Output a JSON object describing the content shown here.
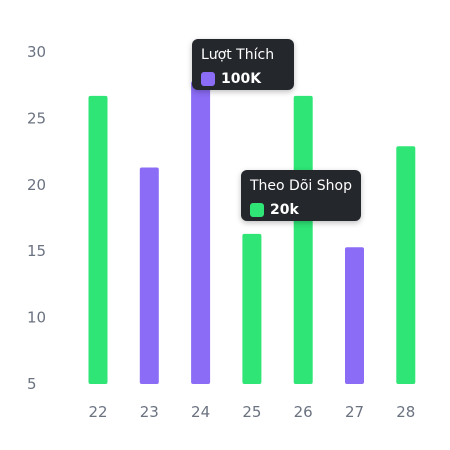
{
  "chart_data": {
    "type": "bar",
    "categories": [
      "22",
      "23",
      "24",
      "25",
      "26",
      "27",
      "28"
    ],
    "series": [
      {
        "name": "Theo Dõi Shop",
        "color": "#2ee576",
        "values": [
          26.7,
          null,
          null,
          16.3,
          26.7,
          null,
          22.9
        ]
      },
      {
        "name": "Lượt Thích",
        "color": "#8b6cf6",
        "values": [
          null,
          21.3,
          27.8,
          null,
          null,
          15.3,
          null
        ]
      }
    ],
    "y_ticks": [
      "30",
      "25",
      "20",
      "15",
      "10",
      "5"
    ],
    "ylim": [
      5,
      30
    ],
    "grid": false
  },
  "tooltips": [
    {
      "title": "Lượt Thích",
      "value": "100K",
      "color": "#8b6cf6"
    },
    {
      "title": "Theo Dõi Shop",
      "value": "20k",
      "color": "#2ee576"
    }
  ]
}
